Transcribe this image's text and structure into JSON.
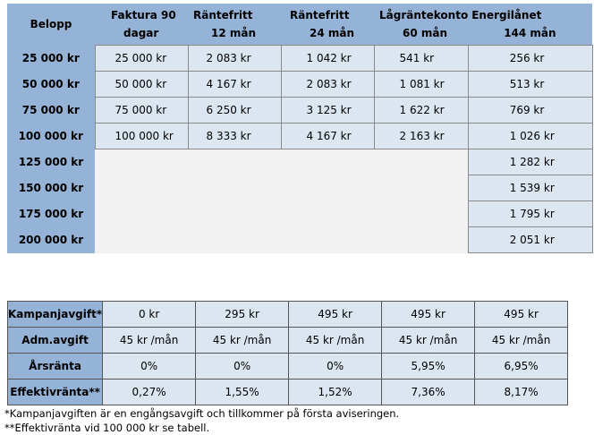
{
  "loan_table": {
    "header": {
      "belopp": "Belopp",
      "columns": [
        {
          "line1": "Faktura 90",
          "line2": "dagar"
        },
        {
          "line1": "Räntefritt",
          "line2": "12 mån"
        },
        {
          "line1": "Räntefritt",
          "line2": "24 mån"
        },
        {
          "line1": "Lågräntekonto",
          "line2": "60 mån"
        },
        {
          "line1": "Energilånet",
          "line2": "144 mån"
        }
      ]
    },
    "rows": [
      {
        "amount": "25 000 kr",
        "values": [
          "25 000 kr",
          "2 083 kr",
          "1 042 kr",
          "541 kr",
          "256 kr"
        ]
      },
      {
        "amount": "50 000 kr",
        "values": [
          "50 000 kr",
          "4 167 kr",
          "2 083 kr",
          "1 081 kr",
          "513 kr"
        ]
      },
      {
        "amount": "75 000 kr",
        "values": [
          "75 000 kr",
          "6 250 kr",
          "3 125 kr",
          "1 622 kr",
          "769 kr"
        ]
      },
      {
        "amount": "100 000 kr",
        "values": [
          "100 000 kr",
          "8 333 kr",
          "4 167 kr",
          "2 163 kr",
          "1 026 kr"
        ]
      },
      {
        "amount": "125 000 kr",
        "values": [
          "",
          "",
          "",
          "",
          "1 282 kr"
        ]
      },
      {
        "amount": "150 000 kr",
        "values": [
          "",
          "",
          "",
          "",
          "1 539 kr"
        ]
      },
      {
        "amount": "175 000 kr",
        "values": [
          "",
          "",
          "",
          "",
          "1 795 kr"
        ]
      },
      {
        "amount": "200 000 kr",
        "values": [
          "",
          "",
          "",
          "",
          "2 051 kr"
        ]
      }
    ]
  },
  "fee_table": {
    "rows": [
      {
        "label": "Kampanjavgift*",
        "values": [
          "0 kr",
          "295 kr",
          "495 kr",
          "495 kr",
          "495 kr"
        ]
      },
      {
        "label": "Adm.avgift",
        "values": [
          "45 kr /mån",
          "45 kr /mån",
          "45 kr /mån",
          "45 kr /mån",
          "45 kr /mån"
        ]
      },
      {
        "label": "Årsränta",
        "values": [
          "0%",
          "0%",
          "0%",
          "5,95%",
          "6,95%"
        ]
      },
      {
        "label": "Effektivränta**",
        "values": [
          "0,27%",
          "1,55%",
          "1,52%",
          "7,36%",
          "8,17%"
        ]
      }
    ]
  },
  "footnotes": [
    "*Kampanjavgiften är en engångsavgift och tillkommer på första aviseringen.",
    "**Effektivränta vid 100 000 kr se tabell."
  ],
  "colors": {
    "header_bg": "#95b3d7",
    "cell_bg": "#dce6f1",
    "empty_bg": "#f2f2f2"
  }
}
